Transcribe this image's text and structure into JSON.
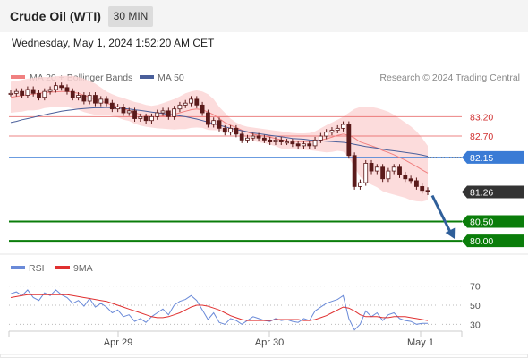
{
  "header": {
    "title": "Crude Oil (WTI)",
    "timeframe": "30 MIN",
    "datetime": "Wednesday, May 1, 2024 1:52:20 AM CET"
  },
  "legend": {
    "ma20": "MA 20 + Bollinger Bands",
    "ma50": "MA 50",
    "source": "Research © 2024 Trading Central",
    "rsi": "RSI",
    "rsi_ma": "9MA"
  },
  "colors": {
    "ma20": "#f08080",
    "ma50": "#4a5f9a",
    "bollinger": "#fcd6d6",
    "resistance": "#e55a5a",
    "pivot": "#3a7bd5",
    "support": "#0a7d0a",
    "current": "#333333",
    "candle": "#5a1a1a",
    "rsi": "#6a8ad8",
    "rsi_ma": "#e03030",
    "arrow": "#2f5f9a"
  },
  "chart_data": [
    {
      "type": "line",
      "title": "Crude Oil (WTI) 30 MIN",
      "ylim": [
        79.75,
        83.9
      ],
      "x_ticks": [
        "Apr 29",
        "Apr 30",
        "May 1"
      ],
      "price_levels": [
        {
          "label": "83.20",
          "value": 83.2,
          "kind": "resistance"
        },
        {
          "label": "82.70",
          "value": 82.7,
          "kind": "resistance"
        },
        {
          "label": "82.15",
          "value": 82.15,
          "kind": "pivot"
        },
        {
          "label": "81.26",
          "value": 81.26,
          "kind": "current"
        },
        {
          "label": "80.50",
          "value": 80.5,
          "kind": "support"
        },
        {
          "label": "80.00",
          "value": 80.0,
          "kind": "support"
        }
      ],
      "close": [
        83.8,
        83.85,
        83.75,
        83.9,
        83.8,
        83.7,
        83.85,
        83.9,
        84.0,
        83.95,
        83.85,
        83.7,
        83.75,
        83.6,
        83.75,
        83.55,
        83.65,
        83.55,
        83.4,
        83.45,
        83.3,
        83.35,
        83.15,
        83.2,
        83.1,
        83.2,
        83.3,
        83.35,
        83.2,
        83.4,
        83.5,
        83.55,
        83.65,
        83.5,
        83.3,
        83.0,
        83.1,
        82.9,
        82.8,
        82.9,
        82.75,
        82.6,
        82.65,
        82.7,
        82.65,
        82.6,
        82.55,
        82.6,
        82.55,
        82.55,
        82.5,
        82.45,
        82.5,
        82.45,
        82.6,
        82.7,
        82.8,
        82.85,
        82.9,
        83.0,
        82.2,
        81.4,
        81.5,
        82.0,
        81.8,
        81.9,
        81.6,
        81.8,
        81.9,
        81.7,
        81.6,
        81.55,
        81.4,
        81.3,
        81.26
      ],
      "ma20": [
        83.7,
        83.72,
        83.74,
        83.77,
        83.78,
        83.8,
        83.82,
        83.83,
        83.84,
        83.85,
        83.85,
        83.83,
        83.8,
        83.75,
        83.7,
        83.65,
        83.6,
        83.55,
        83.5,
        83.45,
        83.4,
        83.36,
        83.3,
        83.26,
        83.22,
        83.2,
        83.2,
        83.22,
        83.24,
        83.26,
        83.3,
        83.34,
        83.38,
        83.4,
        83.38,
        83.32,
        83.25,
        83.15,
        83.05,
        82.98,
        82.92,
        82.85,
        82.8,
        82.75,
        82.72,
        82.7,
        82.67,
        82.64,
        82.6,
        82.58,
        82.57,
        82.56,
        82.56,
        82.56,
        82.57,
        82.6,
        82.63,
        82.67,
        82.72,
        82.75,
        82.72,
        82.65,
        82.55,
        82.5,
        82.45,
        82.4,
        82.33,
        82.28,
        82.22,
        82.15,
        82.08,
        82.0,
        81.92,
        81.83,
        81.75
      ],
      "bb_upper": [
        84.1,
        84.12,
        84.15,
        84.18,
        84.2,
        84.22,
        84.22,
        84.22,
        84.24,
        84.25,
        84.25,
        84.25,
        84.22,
        84.18,
        84.12,
        84.05,
        83.95,
        83.85,
        83.78,
        83.72,
        83.68,
        83.63,
        83.58,
        83.55,
        83.5,
        83.48,
        83.5,
        83.55,
        83.6,
        83.65,
        83.72,
        83.8,
        83.85,
        83.88,
        83.85,
        83.78,
        83.65,
        83.45,
        83.3,
        83.15,
        83.05,
        82.98,
        82.94,
        82.92,
        82.9,
        82.88,
        82.86,
        82.84,
        82.82,
        82.8,
        82.78,
        82.77,
        82.77,
        82.78,
        82.82,
        82.9,
        82.98,
        83.05,
        83.12,
        83.2,
        83.3,
        83.4,
        83.45,
        83.46,
        83.45,
        83.42,
        83.38,
        83.33,
        83.25,
        83.15,
        83.05,
        82.95,
        82.82,
        82.65,
        82.45
      ],
      "bb_lower": [
        83.3,
        83.32,
        83.33,
        83.36,
        83.36,
        83.38,
        83.42,
        83.44,
        83.44,
        83.45,
        83.45,
        83.41,
        83.38,
        83.32,
        83.28,
        83.25,
        83.25,
        83.25,
        83.22,
        83.18,
        83.12,
        83.09,
        83.02,
        82.97,
        82.94,
        82.92,
        82.9,
        82.89,
        82.88,
        82.87,
        82.88,
        82.88,
        82.91,
        82.92,
        82.91,
        82.86,
        82.85,
        82.85,
        82.8,
        82.81,
        82.79,
        82.72,
        82.66,
        82.58,
        82.54,
        82.52,
        82.48,
        82.44,
        82.38,
        82.36,
        82.36,
        82.35,
        82.35,
        82.34,
        82.32,
        82.3,
        82.28,
        82.29,
        82.32,
        82.3,
        82.14,
        81.9,
        81.65,
        81.54,
        81.45,
        81.38,
        81.28,
        81.23,
        81.19,
        81.15,
        81.11,
        81.05,
        81.02,
        81.01,
        81.05
      ],
      "ma50": [
        83.05,
        83.08,
        83.12,
        83.15,
        83.18,
        83.22,
        83.25,
        83.28,
        83.31,
        83.34,
        83.36,
        83.38,
        83.4,
        83.41,
        83.42,
        83.43,
        83.43,
        83.44,
        83.43,
        83.42,
        83.41,
        83.4,
        83.38,
        83.36,
        83.34,
        83.32,
        83.3,
        83.28,
        83.26,
        83.24,
        83.22,
        83.2,
        83.17,
        83.14,
        83.1,
        83.06,
        83.02,
        82.98,
        82.94,
        82.9,
        82.87,
        82.84,
        82.81,
        82.78,
        82.76,
        82.74,
        82.72,
        82.7,
        82.68,
        82.66,
        82.64,
        82.63,
        82.62,
        82.6,
        82.59,
        82.58,
        82.57,
        82.56,
        82.55,
        82.54,
        82.52,
        82.49,
        82.46,
        82.43,
        82.41,
        82.39,
        82.36,
        82.34,
        82.32,
        82.3,
        82.28,
        82.26,
        82.24,
        82.21,
        82.18
      ]
    },
    {
      "type": "line",
      "title": "RSI",
      "ylim": [
        20,
        80
      ],
      "y_ticks": [
        70,
        50,
        30
      ],
      "rsi": [
        62,
        64,
        60,
        66,
        58,
        55,
        63,
        60,
        66,
        61,
        58,
        52,
        55,
        49,
        57,
        48,
        52,
        48,
        42,
        45,
        38,
        40,
        33,
        36,
        32,
        38,
        42,
        46,
        40,
        50,
        54,
        56,
        60,
        55,
        45,
        35,
        42,
        32,
        30,
        36,
        34,
        30,
        34,
        38,
        36,
        34,
        33,
        36,
        34,
        35,
        33,
        32,
        36,
        34,
        44,
        48,
        52,
        54,
        56,
        60,
        36,
        24,
        30,
        44,
        38,
        42,
        34,
        40,
        42,
        36,
        34,
        33,
        30,
        31,
        31
      ],
      "rsi_ma": [
        58,
        59,
        60,
        61,
        61,
        61,
        61,
        61,
        61,
        61,
        61,
        60,
        59,
        58,
        57,
        56,
        55,
        54,
        52,
        50,
        48,
        46,
        44,
        42,
        40,
        38,
        37,
        37,
        38,
        40,
        42,
        45,
        48,
        50,
        50,
        49,
        47,
        45,
        42,
        39,
        37,
        35,
        34,
        34,
        34,
        34,
        34,
        35,
        35,
        35,
        35,
        35,
        34,
        34,
        35,
        37,
        39,
        42,
        45,
        48,
        47,
        44,
        40,
        38,
        38,
        38,
        37,
        37,
        38,
        38,
        38,
        37,
        36,
        35,
        34
      ]
    }
  ]
}
